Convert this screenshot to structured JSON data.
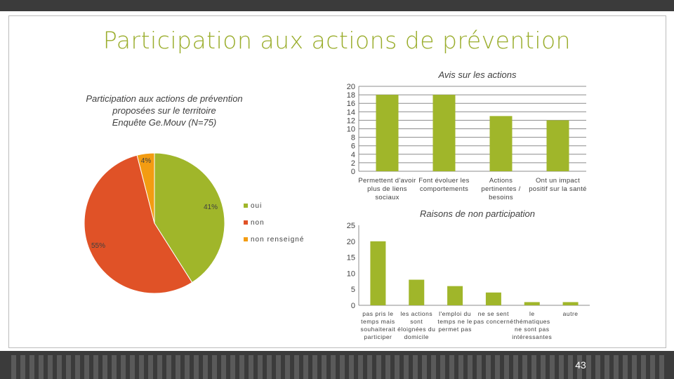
{
  "slide": {
    "title": "Participation aux actions de prévention",
    "page_number": "43"
  },
  "colors": {
    "oui": "#a0b62a",
    "non": "#e05227",
    "non_renseigne": "#f39c12",
    "bars": "#a0b62a",
    "title": "#9aad2c"
  },
  "chart_data": [
    {
      "type": "pie",
      "title_lines": [
        "Participation aux actions de prévention",
        "proposées sur le territoire",
        "Enquête Ge.Mouv (N=75)"
      ],
      "slices": [
        {
          "label": "oui",
          "value": 41,
          "display": "41%"
        },
        {
          "label": "non",
          "value": 55,
          "display": "55%"
        },
        {
          "label": "non  renseigné",
          "value": 4,
          "display": "4%"
        }
      ],
      "legend": [
        "oui",
        "non",
        "non  renseigné"
      ]
    },
    {
      "type": "bar",
      "title": "Avis sur les actions",
      "categories": [
        [
          "Permettent d'avoir",
          "plus de liens",
          "sociaux"
        ],
        [
          "Font évoluer les",
          "comportements"
        ],
        [
          "Actions",
          "pertinentes /",
          "besoins"
        ],
        [
          "Ont un impact",
          "positif sur la santé"
        ]
      ],
      "values": [
        18,
        18,
        13,
        12
      ],
      "ylim": [
        0,
        20
      ],
      "yticks": [
        "0",
        "2",
        "4",
        "6",
        "8",
        "10",
        "12",
        "14",
        "16",
        "18",
        "20"
      ]
    },
    {
      "type": "bar",
      "title": "Raisons de non participation",
      "categories": [
        [
          "pas pris le",
          "temps mais",
          "souhaiterait",
          "participer"
        ],
        [
          "les actions",
          "sont",
          "éloignées du",
          "domicile"
        ],
        [
          "l'emploi du",
          "temps ne le",
          "permet pas"
        ],
        [
          "ne se sent",
          "pas concerné"
        ],
        [
          "le",
          "thématiques",
          "ne sont pas",
          "intéressantes"
        ],
        [
          "autre"
        ]
      ],
      "values": [
        20,
        8,
        6,
        4,
        1,
        1
      ],
      "ylim": [
        0,
        25
      ],
      "yticks": [
        "0",
        "5",
        "10",
        "15",
        "20",
        "25"
      ]
    }
  ]
}
